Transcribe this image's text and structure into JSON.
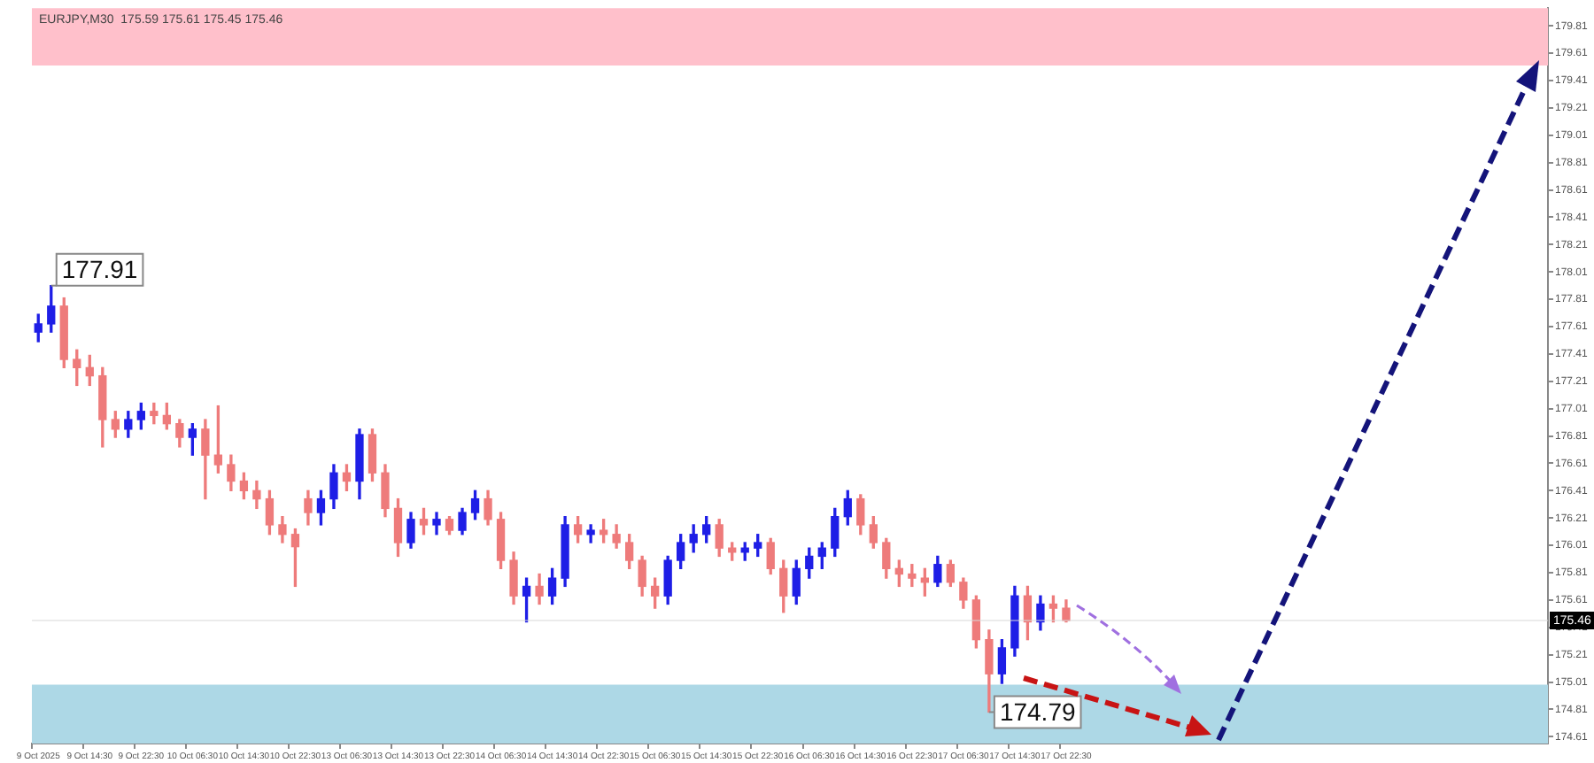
{
  "chart_data": {
    "type": "candlestick",
    "title": "EURJPY,M30  175.59 175.61 175.45 175.46",
    "categories": [
      "9 Oct 2025",
      null,
      null,
      null,
      "9 Oct 14:30",
      null,
      null,
      null,
      "9 Oct 22:30",
      null,
      null,
      null,
      "10 Oct 06:30",
      null,
      null,
      null,
      "10 Oct 14:30",
      null,
      null,
      null,
      "10 Oct 22:30",
      null,
      null,
      null,
      "13 Oct 06:30",
      null,
      null,
      null,
      "13 Oct 14:30",
      null,
      null,
      null,
      "13 Oct 22:30",
      null,
      null,
      null,
      "14 Oct 06:30",
      null,
      null,
      null,
      "14 Oct 14:30",
      null,
      null,
      null,
      "14 Oct 22:30",
      null,
      null,
      null,
      "15 Oct 06:30",
      null,
      null,
      null,
      "15 Oct 14:30",
      null,
      null,
      null,
      "15 Oct 22:30",
      null,
      null,
      null,
      "16 Oct 06:30",
      null,
      null,
      null,
      "16 Oct 14:30",
      null,
      null,
      null,
      "16 Oct 22:30",
      null,
      null,
      null,
      "17 Oct 06:30",
      null,
      null,
      null,
      "17 Oct 14:30",
      null,
      null,
      null,
      "17 Oct 22:30",
      null,
      null,
      null,
      null,
      null,
      null,
      null,
      null,
      null,
      null,
      null,
      null,
      null,
      null,
      null,
      null,
      null,
      null,
      null,
      null,
      null,
      null,
      null,
      null,
      null,
      null,
      null,
      null,
      null,
      null,
      null,
      null,
      null,
      null,
      null,
      null,
      null
    ],
    "ohlc": [
      [
        177.57,
        177.7,
        177.5,
        177.63
      ],
      [
        177.63,
        177.91,
        177.57,
        177.76
      ],
      [
        177.76,
        177.82,
        177.31,
        177.37
      ],
      [
        177.37,
        177.44,
        177.18,
        177.31
      ],
      [
        177.31,
        177.4,
        177.18,
        177.25
      ],
      [
        177.25,
        177.31,
        176.73,
        176.93
      ],
      [
        176.93,
        176.99,
        176.8,
        176.86
      ],
      [
        176.86,
        176.99,
        176.8,
        176.93
      ],
      [
        176.93,
        177.05,
        176.86,
        176.99
      ],
      [
        176.99,
        177.05,
        176.9,
        176.96
      ],
      [
        176.96,
        177.05,
        176.86,
        176.9
      ],
      [
        176.9,
        176.93,
        176.73,
        176.8
      ],
      [
        176.8,
        176.9,
        176.67,
        176.86
      ],
      [
        176.86,
        176.93,
        176.35,
        176.67
      ],
      [
        176.67,
        177.03,
        176.54,
        176.6
      ],
      [
        176.6,
        176.67,
        176.41,
        176.48
      ],
      [
        176.48,
        176.54,
        176.35,
        176.41
      ],
      [
        176.41,
        176.48,
        176.28,
        176.35
      ],
      [
        176.35,
        176.41,
        176.09,
        176.16
      ],
      [
        176.16,
        176.22,
        176.03,
        176.09
      ],
      [
        176.09,
        176.13,
        175.71,
        176.0
      ],
      [
        176.35,
        176.41,
        176.16,
        176.25
      ],
      [
        176.25,
        176.41,
        176.16,
        176.35
      ],
      [
        176.35,
        176.6,
        176.28,
        176.54
      ],
      [
        176.54,
        176.6,
        176.41,
        176.48
      ],
      [
        176.48,
        176.86,
        176.35,
        176.82
      ],
      [
        176.82,
        176.86,
        176.48,
        176.54
      ],
      [
        176.54,
        176.6,
        176.22,
        176.28
      ],
      [
        176.28,
        176.35,
        175.93,
        176.03
      ],
      [
        176.03,
        176.25,
        175.99,
        176.2
      ],
      [
        176.2,
        176.28,
        176.09,
        176.16
      ],
      [
        176.16,
        176.25,
        176.09,
        176.2
      ],
      [
        176.2,
        176.22,
        176.09,
        176.12
      ],
      [
        176.12,
        176.28,
        176.09,
        176.25
      ],
      [
        176.25,
        176.41,
        176.2,
        176.35
      ],
      [
        176.35,
        176.41,
        176.16,
        176.2
      ],
      [
        176.2,
        176.25,
        175.84,
        175.9
      ],
      [
        175.9,
        175.96,
        175.58,
        175.64
      ],
      [
        175.64,
        175.77,
        175.45,
        175.71
      ],
      [
        175.71,
        175.8,
        175.58,
        175.64
      ],
      [
        175.64,
        175.84,
        175.58,
        175.77
      ],
      [
        175.77,
        176.22,
        175.71,
        176.16
      ],
      [
        176.16,
        176.22,
        176.03,
        176.09
      ],
      [
        176.09,
        176.16,
        176.03,
        176.12
      ],
      [
        176.12,
        176.2,
        176.03,
        176.09
      ],
      [
        176.09,
        176.16,
        175.99,
        176.03
      ],
      [
        176.03,
        176.09,
        175.84,
        175.9
      ],
      [
        175.9,
        175.93,
        175.64,
        175.71
      ],
      [
        175.71,
        175.77,
        175.55,
        175.64
      ],
      [
        175.64,
        175.93,
        175.58,
        175.9
      ],
      [
        175.9,
        176.09,
        175.84,
        176.03
      ],
      [
        176.03,
        176.16,
        175.96,
        176.09
      ],
      [
        176.09,
        176.22,
        176.03,
        176.16
      ],
      [
        176.16,
        176.2,
        175.93,
        175.99
      ],
      [
        175.99,
        176.03,
        175.9,
        175.96
      ],
      [
        175.96,
        176.03,
        175.9,
        175.99
      ],
      [
        175.99,
        176.09,
        175.93,
        176.03
      ],
      [
        176.03,
        176.06,
        175.8,
        175.84
      ],
      [
        175.84,
        175.9,
        175.52,
        175.64
      ],
      [
        175.64,
        175.9,
        175.58,
        175.84
      ],
      [
        175.84,
        175.99,
        175.77,
        175.93
      ],
      [
        175.93,
        176.03,
        175.84,
        175.99
      ],
      [
        175.99,
        176.28,
        175.93,
        176.22
      ],
      [
        176.22,
        176.41,
        176.16,
        176.35
      ],
      [
        176.35,
        176.38,
        176.09,
        176.16
      ],
      [
        176.16,
        176.22,
        175.99,
        176.03
      ],
      [
        176.03,
        176.06,
        175.77,
        175.84
      ],
      [
        175.84,
        175.9,
        175.71,
        175.8
      ],
      [
        175.8,
        175.87,
        175.71,
        175.77
      ],
      [
        175.77,
        175.84,
        175.64,
        175.74
      ],
      [
        175.74,
        175.93,
        175.71,
        175.87
      ],
      [
        175.87,
        175.9,
        175.71,
        175.74
      ],
      [
        175.74,
        175.77,
        175.55,
        175.61
      ],
      [
        175.61,
        175.64,
        175.26,
        175.32
      ],
      [
        175.32,
        175.39,
        174.79,
        175.07
      ],
      [
        175.07,
        175.32,
        175.0,
        175.26
      ],
      [
        175.26,
        175.71,
        175.2,
        175.64
      ],
      [
        175.64,
        175.71,
        175.32,
        175.45
      ],
      [
        175.45,
        175.64,
        175.39,
        175.58
      ],
      [
        175.58,
        175.64,
        175.45,
        175.55
      ],
      [
        175.55,
        175.61,
        175.45,
        175.46
      ],
      null,
      null,
      null,
      null,
      null,
      null,
      null,
      null,
      null,
      null,
      null,
      null,
      null,
      null,
      null,
      null,
      null,
      null,
      null,
      null,
      null,
      null,
      null,
      null,
      null,
      null,
      null,
      null,
      null,
      null,
      null,
      null,
      null,
      null,
      null,
      null,
      null
    ],
    "colors": [
      "#1e1ee6",
      "#1e1ee6",
      "#ee7b7b",
      "#ee7b7b",
      "#ee7b7b",
      "#ee7b7b",
      "#ee7b7b",
      "#1e1ee6",
      "#1e1ee6",
      "#ee7b7b",
      "#ee7b7b",
      "#ee7b7b",
      "#1e1ee6",
      "#ee7b7b",
      "#ee7b7b",
      "#ee7b7b",
      "#ee7b7b",
      "#ee7b7b",
      "#ee7b7b",
      "#ee7b7b",
      "#ee7b7b",
      "#ee7b7b",
      "#1e1ee6",
      "#1e1ee6",
      "#ee7b7b",
      "#1e1ee6",
      "#ee7b7b",
      "#ee7b7b",
      "#ee7b7b",
      "#1e1ee6",
      "#ee7b7b",
      "#1e1ee6",
      "#ee7b7b",
      "#1e1ee6",
      "#1e1ee6",
      "#ee7b7b",
      "#ee7b7b",
      "#ee7b7b",
      "#1e1ee6",
      "#ee7b7b",
      "#1e1ee6",
      "#1e1ee6",
      "#ee7b7b",
      "#1e1ee6",
      "#ee7b7b",
      "#ee7b7b",
      "#ee7b7b",
      "#ee7b7b",
      "#ee7b7b",
      "#1e1ee6",
      "#1e1ee6",
      "#1e1ee6",
      "#1e1ee6",
      "#ee7b7b",
      "#ee7b7b",
      "#1e1ee6",
      "#1e1ee6",
      "#ee7b7b",
      "#ee7b7b",
      "#1e1ee6",
      "#1e1ee6",
      "#1e1ee6",
      "#1e1ee6",
      "#1e1ee6",
      "#ee7b7b",
      "#ee7b7b",
      "#ee7b7b",
      "#ee7b7b",
      "#ee7b7b",
      "#ee7b7b",
      "#1e1ee6",
      "#ee7b7b",
      "#ee7b7b",
      "#ee7b7b",
      "#ee7b7b",
      "#1e1ee6",
      "#1e1ee6",
      "#ee7b7b",
      "#1e1ee6",
      "#ee7b7b",
      "#ee7b7b",
      null,
      null,
      null,
      null,
      null,
      null,
      null,
      null,
      null,
      null,
      null,
      null,
      null,
      null,
      null,
      null,
      null,
      null,
      null,
      null,
      null,
      null,
      null,
      null,
      null,
      null,
      null,
      null,
      null,
      null,
      null,
      null,
      null,
      null,
      null,
      null,
      null
    ],
    "ylim": [
      174.56,
      179.94
    ],
    "yticks": [
      174.61,
      174.81,
      175.01,
      175.21,
      175.41,
      175.61,
      175.81,
      176.01,
      176.21,
      176.41,
      176.61,
      176.81,
      177.01,
      177.21,
      177.41,
      177.61,
      177.81,
      178.01,
      178.21,
      178.41,
      178.61,
      178.81,
      179.01,
      179.21,
      179.41,
      179.61,
      179.81
    ],
    "bands": [
      {
        "axis": "y",
        "from": 179.52,
        "to": 179.94,
        "color": "#ffc0cb"
      },
      {
        "axis": "y",
        "from": 174.56,
        "to": 174.99,
        "color": "#add8e6"
      }
    ],
    "ref_lines": [
      {
        "axis": "y",
        "value": 175.46,
        "label": "175.46"
      }
    ],
    "annotations": [
      "177.91",
      "174.79"
    ]
  }
}
